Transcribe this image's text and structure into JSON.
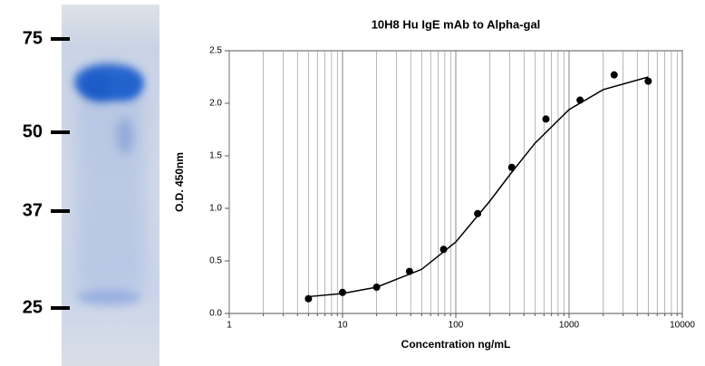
{
  "gel": {
    "markers": [
      75,
      50,
      37,
      25
    ]
  },
  "chart_data": {
    "type": "scatter",
    "title": "10H8 Hu IgE mAb to Alpha-gal",
    "xlabel": "Concentration ng/mL",
    "ylabel": "O.D. 450nm",
    "xscale": "log",
    "xlim": [
      1,
      10000
    ],
    "xticks": [
      1,
      10,
      100,
      1000,
      10000
    ],
    "xminorticks": [
      2,
      3,
      4,
      5,
      6,
      7,
      8,
      9,
      20,
      30,
      40,
      50,
      60,
      70,
      80,
      90,
      200,
      300,
      400,
      500,
      600,
      700,
      800,
      900,
      2000,
      3000,
      4000,
      5000,
      6000,
      7000,
      8000,
      9000
    ],
    "ylim": [
      0,
      2.5
    ],
    "yticks": [
      {
        "value": 0,
        "label": "0.0"
      },
      0.5,
      {
        "value": 1,
        "label": "1.0"
      },
      1.5,
      {
        "value": 2,
        "label": "2.0"
      },
      2.5
    ],
    "grid": "x",
    "series": [
      {
        "mode": "markers",
        "color": "#000000",
        "x": [
          5,
          10,
          20,
          39,
          78,
          156,
          312,
          625,
          1250,
          2500,
          5000
        ],
        "values": [
          0.14,
          0.2,
          0.25,
          0.4,
          0.61,
          0.95,
          1.39,
          1.85,
          2.03,
          2.27,
          2.21
        ]
      },
      {
        "mode": "line",
        "color": "#000000",
        "x": [
          5,
          10,
          20,
          50,
          100,
          200,
          300,
          500,
          1000,
          2000,
          5000
        ],
        "values": [
          0.16,
          0.19,
          0.25,
          0.42,
          0.68,
          1.07,
          1.32,
          1.62,
          1.94,
          2.13,
          2.25
        ]
      }
    ]
  }
}
